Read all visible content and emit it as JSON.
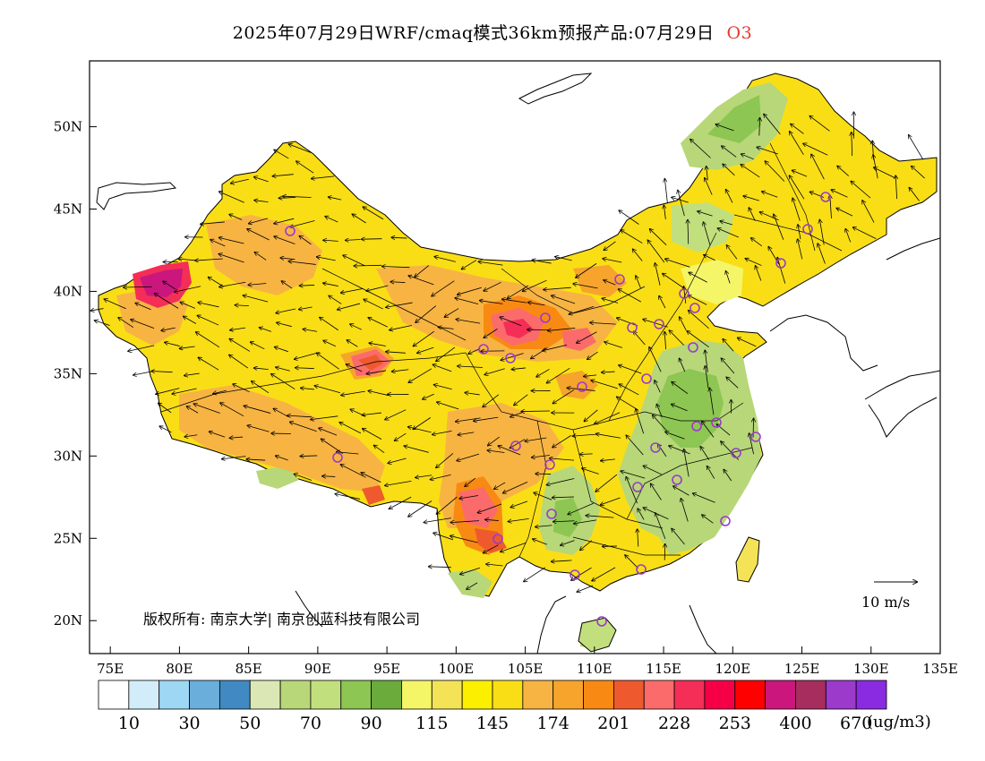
{
  "title": {
    "main": "2025年07月29日WRF/cmaq模式36km预报产品:07月29日",
    "species": "O3"
  },
  "map": {
    "lon_range": [
      73.5,
      135
    ],
    "lat_range": [
      18,
      54
    ],
    "lon_ticks": [
      "75E",
      "80E",
      "85E",
      "90E",
      "95E",
      "100E",
      "105E",
      "110E",
      "115E",
      "120E",
      "125E",
      "130E",
      "135E"
    ],
    "lat_ticks": [
      "20N",
      "25N",
      "30N",
      "35N",
      "40N",
      "45N",
      "50N"
    ],
    "copyright": "版权所有: 南京大学| 南京创蓝科技有限公司",
    "wind_reference": "10 m/s",
    "hotspots": [
      {
        "region": "westernmost Xinjiang",
        "level": "400-670"
      },
      {
        "region": "Qinghai",
        "level": "228-253"
      },
      {
        "region": "Ningxia / Shaanxi",
        "level": "228-253"
      },
      {
        "region": "Yunnan / Sichuan",
        "level": "201-253"
      }
    ],
    "cities": [
      "Urumqi",
      "Lhasa",
      "Xining",
      "Lanzhou",
      "Yinchuan",
      "Hohhot",
      "Beijing",
      "Tianjin",
      "Shijiazhuang",
      "Taiyuan",
      "Jinan",
      "Zhengzhou",
      "Xi'an",
      "Chengdu",
      "Chongqing",
      "Guiyang",
      "Kunming",
      "Nanning",
      "Guangzhou",
      "Haikou",
      "Changsha",
      "Wuhan",
      "Nanchang",
      "Fuzhou",
      "Hangzhou",
      "Shanghai",
      "Nanjing",
      "Hefei",
      "Changchun",
      "Harbin",
      "Shenyang"
    ]
  },
  "colorbar": {
    "colors": [
      "#ffffff",
      "#d3ecf9",
      "#9dd7f3",
      "#6aaedb",
      "#4189c2",
      "#dbe8b5",
      "#b7d779",
      "#c2df7d",
      "#8dc652",
      "#6aab3b",
      "#f5f568",
      "#f4e356",
      "#fcef00",
      "#f9de16",
      "#f7b443",
      "#f7a42c",
      "#f88a13",
      "#ee5a2e",
      "#fb6b6b",
      "#f42e57",
      "#f50047",
      "#ff0000",
      "#ca167d",
      "#a72d5e",
      "#9b3acb",
      "#8a2be2"
    ],
    "labels": [
      "10",
      "30",
      "50",
      "70",
      "90",
      "115",
      "145",
      "174",
      "201",
      "228",
      "253",
      "400",
      "670"
    ],
    "unit": "(ug/m3)"
  }
}
